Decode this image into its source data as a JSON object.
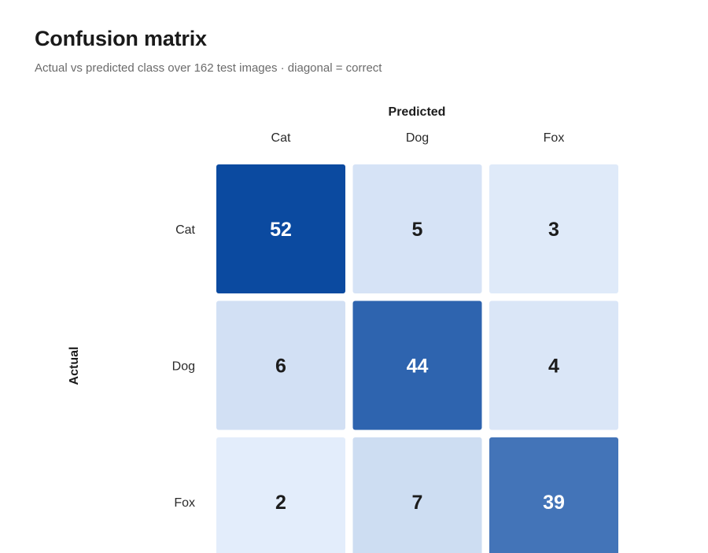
{
  "header": {
    "title": "Confusion matrix",
    "subtitle": "Actual vs predicted class over 162 test images · diagonal = correct"
  },
  "chart_data": {
    "type": "heatmap",
    "title": "Confusion matrix",
    "subtitle": "Actual vs predicted class over 162 test images · diagonal = correct",
    "xlabel": "Predicted",
    "ylabel": "Actual",
    "x_categories": [
      "Cat",
      "Dog",
      "Fox"
    ],
    "y_categories": [
      "Cat",
      "Dog",
      "Fox"
    ],
    "values": [
      [
        52,
        5,
        3
      ],
      [
        6,
        44,
        4
      ],
      [
        2,
        7,
        39
      ]
    ],
    "color_scale": {
      "low": "#e3edfb",
      "high": "#0b4aa0"
    },
    "text_colors": {
      "light": "#ffffff",
      "dark": "#1c1c1c"
    }
  }
}
